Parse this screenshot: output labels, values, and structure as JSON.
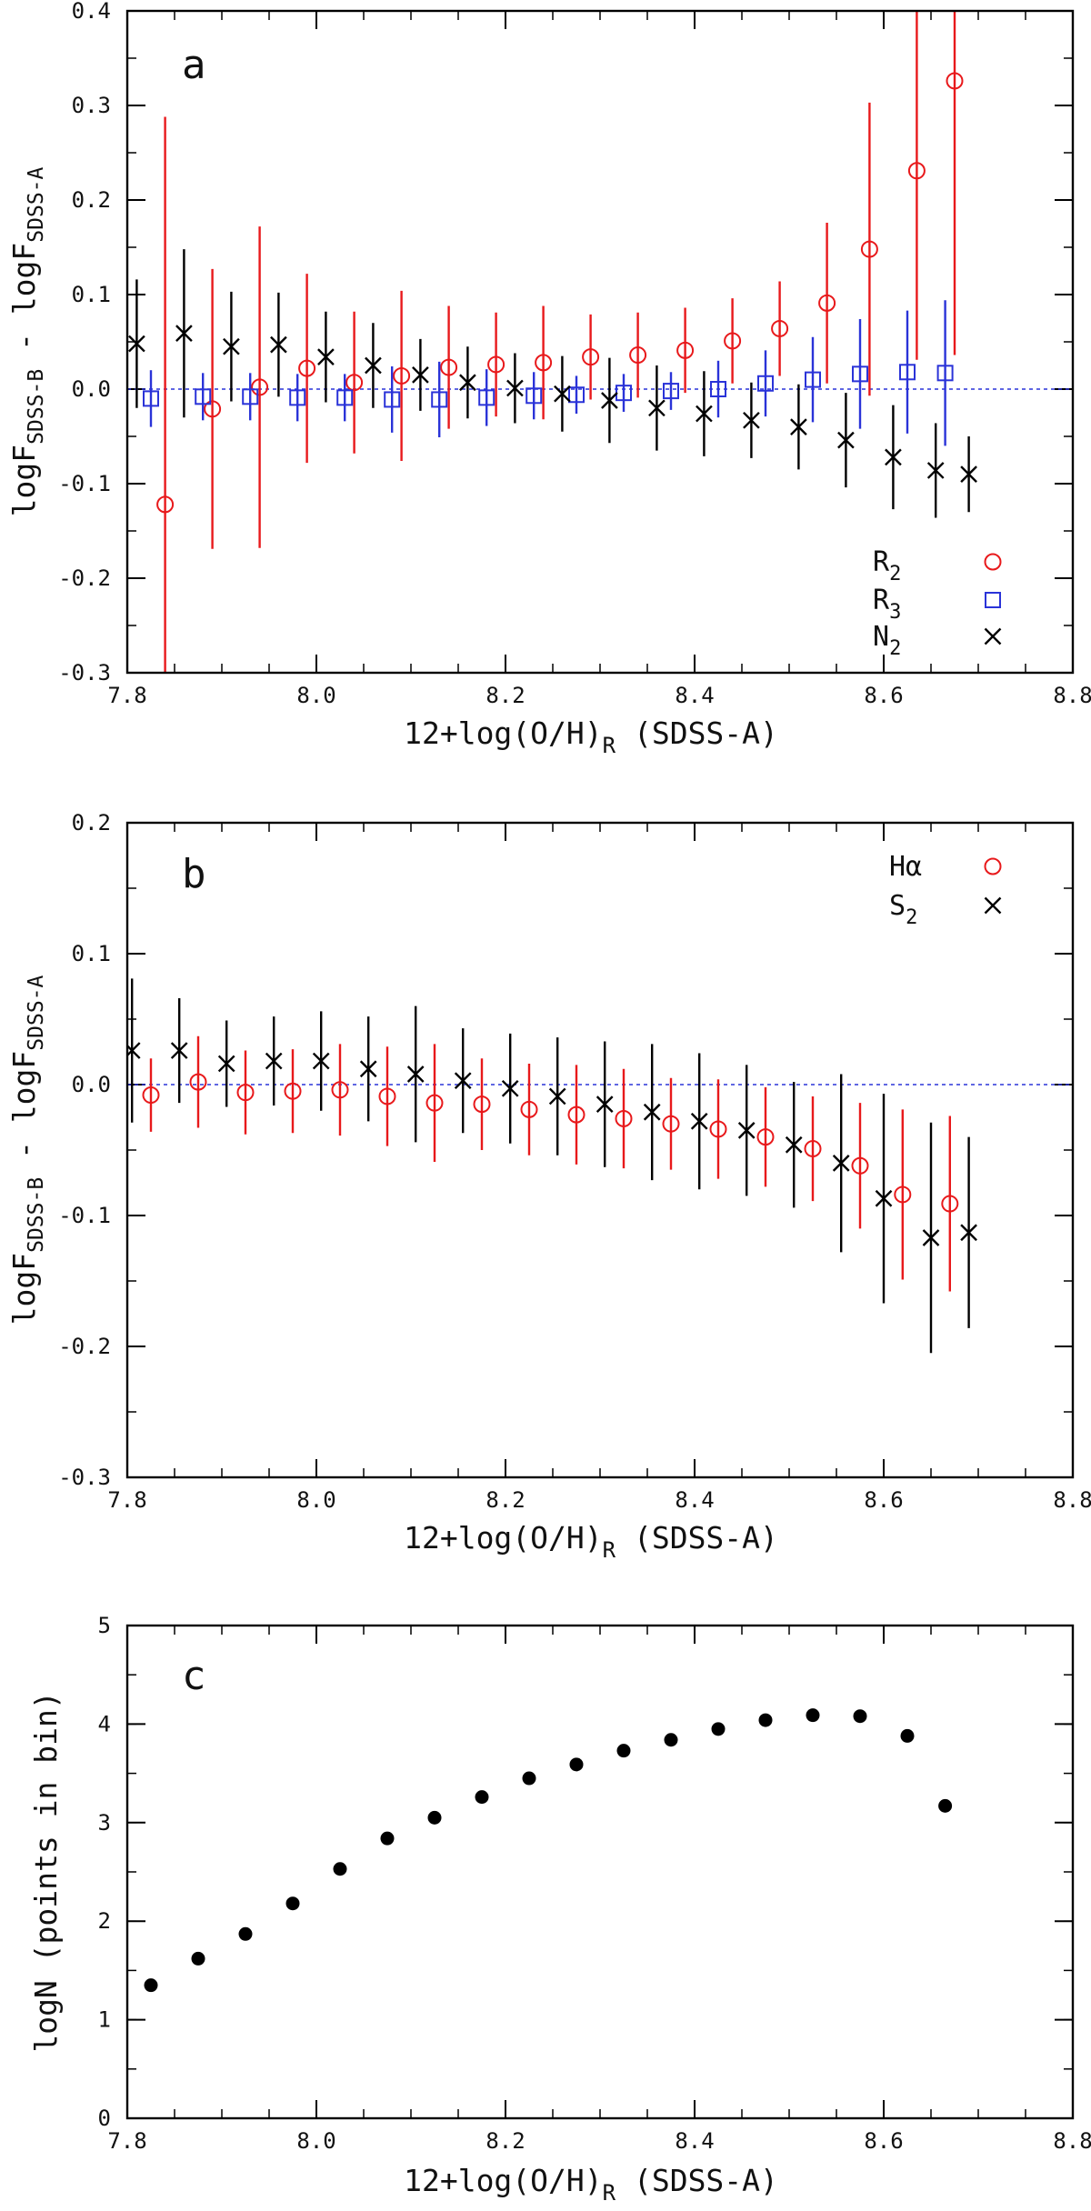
{
  "chart_data": [
    {
      "type": "scatter",
      "panel": "a",
      "xlabel": {
        "main": "12+log(O/H)",
        "sub": "R",
        "tail": "  (SDSS-A)"
      },
      "ylabel": {
        "pre": "logF",
        "sub1": "SDSS-B",
        "mid": " - logF",
        "sub2": "SDSS-A"
      },
      "xlim": [
        7.8,
        8.8
      ],
      "ylim": [
        -0.3,
        0.4
      ],
      "xticks": [
        7.8,
        8.0,
        8.2,
        8.4,
        8.6,
        8.8
      ],
      "yticks": [
        -0.3,
        -0.2,
        -0.1,
        0.0,
        0.1,
        0.2,
        0.3,
        0.4
      ],
      "x_tick_labels": [
        "7.8",
        "8.0",
        "8.2",
        "8.4",
        "8.6",
        "8.8"
      ],
      "y_tick_labels": [
        "-0.3",
        "-0.2",
        "-0.1",
        "0.0",
        "0.1",
        "0.2",
        "0.3",
        "0.4"
      ],
      "reference_line": 0.0,
      "legend_position": "bottom-right",
      "series": [
        {
          "name": "R2",
          "label": "R",
          "label_sub": "2",
          "marker": "circle",
          "color": "#e8191b",
          "x": [
            7.84,
            7.89,
            7.94,
            7.99,
            8.04,
            8.09,
            8.14,
            8.19,
            8.24,
            8.29,
            8.34,
            8.39,
            8.44,
            8.49,
            8.54,
            8.585,
            8.635,
            8.675
          ],
          "y": [
            -0.122,
            -0.021,
            0.002,
            0.022,
            0.007,
            0.014,
            0.023,
            0.026,
            0.028,
            0.034,
            0.036,
            0.041,
            0.051,
            0.064,
            0.091,
            0.148,
            0.231,
            0.326
          ],
          "err": [
            0.41,
            0.148,
            0.17,
            0.1,
            0.075,
            0.09,
            0.065,
            0.055,
            0.06,
            0.045,
            0.045,
            0.045,
            0.045,
            0.05,
            0.085,
            0.155,
            0.2,
            0.29
          ]
        },
        {
          "name": "R3",
          "label": "R",
          "label_sub": "3",
          "marker": "square",
          "color": "#2a33d8",
          "x": [
            7.825,
            7.88,
            7.93,
            7.98,
            8.03,
            8.08,
            8.13,
            8.18,
            8.23,
            8.275,
            8.325,
            8.375,
            8.425,
            8.475,
            8.525,
            8.575,
            8.625,
            8.665
          ],
          "y": [
            -0.01,
            -0.008,
            -0.008,
            -0.009,
            -0.009,
            -0.011,
            -0.011,
            -0.009,
            -0.007,
            -0.006,
            -0.004,
            -0.002,
            0.0,
            0.006,
            0.01,
            0.016,
            0.018,
            0.017
          ],
          "err": [
            0.03,
            0.025,
            0.025,
            0.025,
            0.025,
            0.035,
            0.04,
            0.03,
            0.025,
            0.02,
            0.02,
            0.02,
            0.03,
            0.035,
            0.045,
            0.058,
            0.065,
            0.077
          ]
        },
        {
          "name": "N2",
          "label": "N",
          "label_sub": "2",
          "marker": "cross",
          "color": "#000000",
          "x": [
            7.81,
            7.86,
            7.91,
            7.96,
            8.01,
            8.06,
            8.11,
            8.16,
            8.21,
            8.26,
            8.31,
            8.36,
            8.41,
            8.46,
            8.51,
            8.56,
            8.61,
            8.655,
            8.69
          ],
          "y": [
            0.048,
            0.059,
            0.045,
            0.047,
            0.034,
            0.025,
            0.015,
            0.007,
            0.001,
            -0.005,
            -0.012,
            -0.02,
            -0.026,
            -0.033,
            -0.04,
            -0.054,
            -0.072,
            -0.086,
            -0.09
          ],
          "err": [
            0.068,
            0.089,
            0.058,
            0.055,
            0.048,
            0.045,
            0.038,
            0.038,
            0.037,
            0.04,
            0.045,
            0.045,
            0.045,
            0.04,
            0.045,
            0.05,
            0.055,
            0.05,
            0.04
          ]
        }
      ]
    },
    {
      "type": "scatter",
      "panel": "b",
      "xlabel": {
        "main": "12+log(O/H)",
        "sub": "R",
        "tail": "  (SDSS-A)"
      },
      "ylabel": {
        "pre": "logF",
        "sub1": "SDSS-B",
        "mid": " - logF",
        "sub2": "SDSS-A"
      },
      "xlim": [
        7.8,
        8.8
      ],
      "ylim": [
        -0.3,
        0.2
      ],
      "xticks": [
        7.8,
        8.0,
        8.2,
        8.4,
        8.6,
        8.8
      ],
      "yticks": [
        -0.3,
        -0.2,
        -0.1,
        0.0,
        0.1,
        0.2
      ],
      "x_tick_labels": [
        "7.8",
        "8.0",
        "8.2",
        "8.4",
        "8.6",
        "8.8"
      ],
      "y_tick_labels": [
        "-0.3",
        "-0.2",
        "-0.1",
        "0.0",
        "0.1",
        "0.2"
      ],
      "reference_line": 0.0,
      "legend_position": "top-right",
      "series": [
        {
          "name": "Halpha",
          "label": "Hα",
          "label_sub": "",
          "marker": "circle",
          "color": "#e8191b",
          "x": [
            7.825,
            7.875,
            7.925,
            7.975,
            8.025,
            8.075,
            8.125,
            8.175,
            8.225,
            8.275,
            8.325,
            8.375,
            8.425,
            8.475,
            8.525,
            8.575,
            8.62,
            8.67
          ],
          "y": [
            -0.008,
            0.002,
            -0.006,
            -0.005,
            -0.004,
            -0.009,
            -0.014,
            -0.015,
            -0.019,
            -0.023,
            -0.026,
            -0.03,
            -0.034,
            -0.04,
            -0.049,
            -0.062,
            -0.084,
            -0.091
          ],
          "err": [
            0.028,
            0.035,
            0.032,
            0.032,
            0.035,
            0.038,
            0.045,
            0.035,
            0.035,
            0.038,
            0.038,
            0.035,
            0.038,
            0.038,
            0.04,
            0.048,
            0.065,
            0.067
          ]
        },
        {
          "name": "S2",
          "label": "S",
          "label_sub": "2",
          "marker": "cross",
          "color": "#000000",
          "x": [
            7.805,
            7.855,
            7.905,
            7.955,
            8.005,
            8.055,
            8.105,
            8.155,
            8.205,
            8.255,
            8.305,
            8.355,
            8.405,
            8.455,
            8.505,
            8.555,
            8.6,
            8.65,
            8.69
          ],
          "y": [
            0.026,
            0.026,
            0.016,
            0.018,
            0.018,
            0.012,
            0.008,
            0.003,
            -0.003,
            -0.009,
            -0.015,
            -0.021,
            -0.028,
            -0.035,
            -0.046,
            -0.06,
            -0.087,
            -0.117,
            -0.113
          ],
          "err": [
            0.055,
            0.04,
            0.033,
            0.034,
            0.038,
            0.04,
            0.052,
            0.04,
            0.042,
            0.045,
            0.048,
            0.052,
            0.052,
            0.05,
            0.048,
            0.068,
            0.08,
            0.088,
            0.073
          ]
        }
      ]
    },
    {
      "type": "scatter",
      "panel": "c",
      "xlabel": {
        "main": "12+log(O/H)",
        "sub": "R",
        "tail": "  (SDSS-A)"
      },
      "ylabel": {
        "text": "logN (points in bin)"
      },
      "xlim": [
        7.8,
        8.8
      ],
      "ylim": [
        0,
        5
      ],
      "xticks": [
        7.8,
        8.0,
        8.2,
        8.4,
        8.6,
        8.8
      ],
      "yticks": [
        0,
        1,
        2,
        3,
        4,
        5
      ],
      "x_tick_labels": [
        "7.8",
        "8.0",
        "8.2",
        "8.4",
        "8.6",
        "8.8"
      ],
      "y_tick_labels": [
        "0",
        "1",
        "2",
        "3",
        "4",
        "5"
      ],
      "series": [
        {
          "name": "logN",
          "marker": "dot",
          "color": "#000000",
          "x": [
            7.825,
            7.875,
            7.925,
            7.975,
            8.025,
            8.075,
            8.125,
            8.175,
            8.225,
            8.275,
            8.325,
            8.375,
            8.425,
            8.475,
            8.525,
            8.575,
            8.625,
            8.665
          ],
          "y": [
            1.35,
            1.62,
            1.87,
            2.18,
            2.53,
            2.84,
            3.05,
            3.26,
            3.45,
            3.59,
            3.73,
            3.84,
            3.95,
            4.04,
            4.09,
            4.08,
            3.88,
            3.17
          ]
        }
      ]
    }
  ]
}
